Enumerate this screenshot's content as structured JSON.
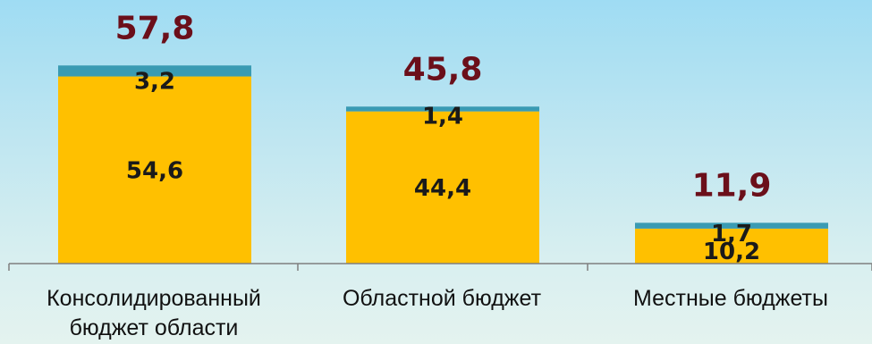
{
  "chart_data": {
    "type": "bar",
    "stacked": true,
    "categories": [
      [
        "Консолидированный",
        "бюджет области"
      ],
      [
        "Областной бюджет"
      ],
      [
        "Местные бюджеты"
      ]
    ],
    "series": [
      {
        "values": [
          54.6,
          44.4,
          10.2
        ],
        "labels": [
          "54,6",
          "44,4",
          "10,2"
        ],
        "color": "#ffc000"
      },
      {
        "values": [
          3.2,
          1.4,
          1.7
        ],
        "labels": [
          "3,2",
          "1,4",
          "1,7"
        ],
        "color": "#3a9bb3"
      }
    ],
    "totals": [
      57.8,
      45.8,
      11.9
    ],
    "total_labels": [
      "57,8",
      "45,8",
      "11,9"
    ],
    "total_color": "#6b0f1a",
    "ylim": [
      0,
      61
    ],
    "grid": false,
    "legend": "none"
  }
}
